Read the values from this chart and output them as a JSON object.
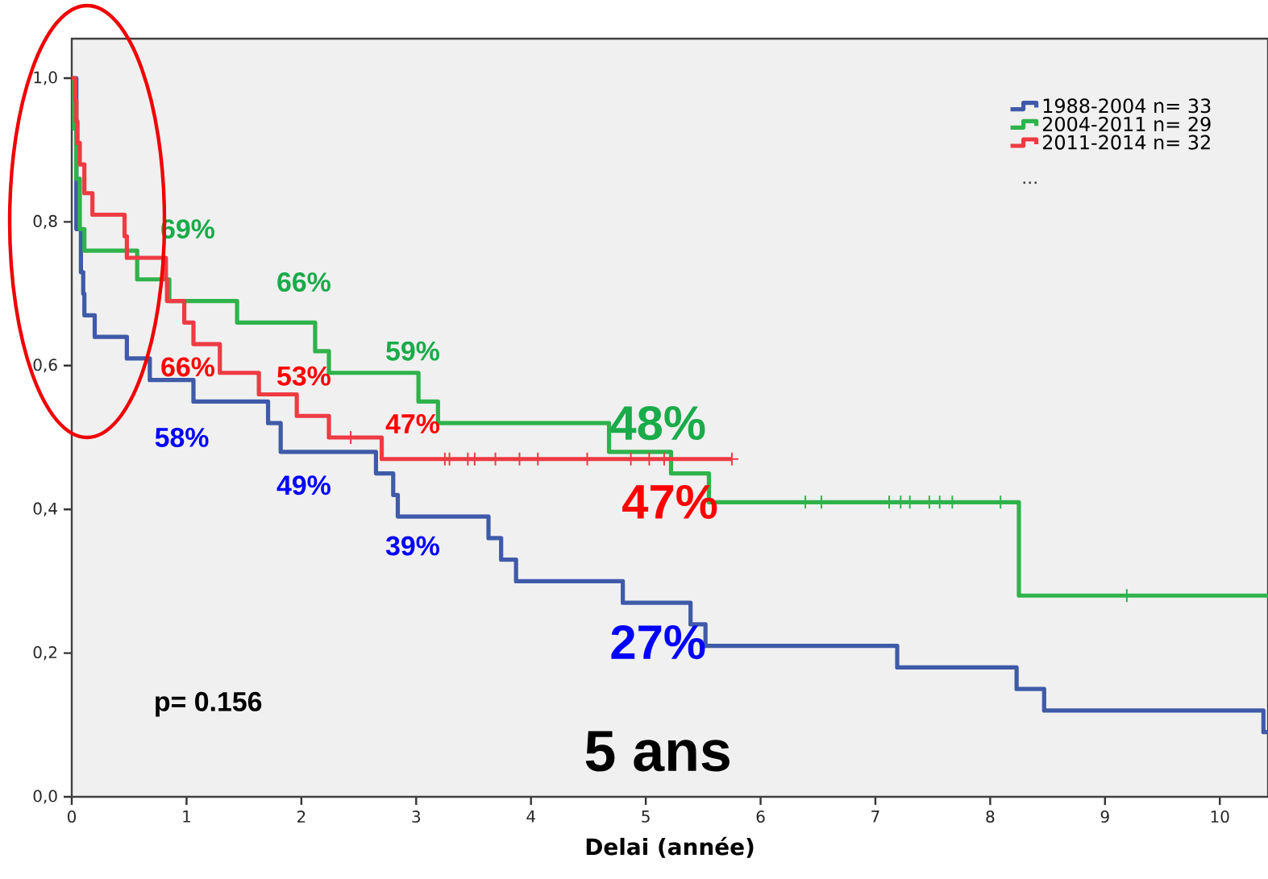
{
  "chart_data": {
    "type": "step",
    "xlabel": "Delai (année)",
    "xlim": [
      0,
      10.42
    ],
    "ylim": [
      0,
      1.055
    ],
    "xticks": [
      0,
      1,
      2,
      3,
      4,
      5,
      6,
      7,
      8,
      9,
      10
    ],
    "yticks": [
      {
        "value": 0,
        "label": "0,0"
      },
      {
        "value": 0.2,
        "label": "0,2"
      },
      {
        "value": 0.4,
        "label": "0,4"
      },
      {
        "value": 0.6,
        "label": "0,6"
      },
      {
        "value": 0.8,
        "label": "0,8"
      },
      {
        "value": 1.0,
        "label": "1,0"
      }
    ],
    "legend": "top right",
    "series": [
      {
        "name": "1988-2004 n= 33",
        "color": "#3f5aa8",
        "x": [
          0,
          0.04,
          0.08,
          0.1,
          0.11,
          0.2,
          0.48,
          0.68,
          1.06,
          1.71,
          1.82,
          2.65,
          2.8,
          2.84,
          3.63,
          3.74,
          3.87,
          4.8,
          5.39,
          5.52,
          7.19,
          8.23,
          8.47,
          10.38,
          10.42
        ],
        "values": [
          1,
          0.79,
          0.73,
          0.7,
          0.67,
          0.64,
          0.61,
          0.58,
          0.55,
          0.52,
          0.48,
          0.45,
          0.42,
          0.39,
          0.36,
          0.33,
          0.3,
          0.27,
          0.24,
          0.21,
          0.18,
          0.15,
          0.12,
          0.09,
          0.09
        ]
      },
      {
        "name": "2004-2011 n= 29",
        "color": "#2eb34b",
        "x": [
          0,
          0.02,
          0.04,
          0.07,
          0.11,
          0.57,
          0.85,
          1.44,
          2.12,
          2.24,
          3.02,
          3.19,
          4.68,
          5.22,
          5.55,
          8.25,
          10.42
        ],
        "values": [
          1,
          0.93,
          0.86,
          0.79,
          0.76,
          0.72,
          0.69,
          0.66,
          0.62,
          0.59,
          0.55,
          0.52,
          0.48,
          0.45,
          0.41,
          0.28,
          0.28
        ]
      },
      {
        "name": "2011-2014 n= 32",
        "color": "#ee3b43",
        "x": [
          0,
          0.03,
          0.04,
          0.05,
          0.07,
          0.11,
          0.18,
          0.46,
          0.48,
          0.82,
          0.83,
          0.98,
          1.06,
          1.29,
          1.63,
          1.96,
          2.24,
          2.7,
          5.75
        ],
        "values": [
          1,
          0.97,
          0.94,
          0.91,
          0.88,
          0.84,
          0.81,
          0.78,
          0.75,
          0.72,
          0.69,
          0.66,
          0.63,
          0.59,
          0.56,
          0.53,
          0.5,
          0.47,
          0.47
        ]
      },
      {
        "type": "scatter",
        "marker": "cross",
        "color": "#2eb34b",
        "x": [
          6.39,
          6.53,
          7.12,
          7.22,
          7.3,
          7.47,
          7.56,
          7.67,
          8.09,
          9.19
        ],
        "values": [
          0.41,
          0.41,
          0.41,
          0.41,
          0.41,
          0.41,
          0.41,
          0.41,
          0.41,
          0.28
        ]
      },
      {
        "type": "scatter",
        "marker": "cross",
        "color": "#ee3b43",
        "x": [
          2.43,
          3.25,
          3.29,
          3.45,
          3.51,
          3.69,
          3.9,
          4.06,
          4.49,
          4.87,
          5.03,
          5.16,
          5.75
        ],
        "values": [
          0.5,
          0.47,
          0.47,
          0.47,
          0.47,
          0.47,
          0.47,
          0.47,
          0.47,
          0.47,
          0.47,
          0.47,
          0.47
        ]
      }
    ],
    "annotations": [
      "69%",
      "66%",
      "59%",
      "48%",
      "66%",
      "53%",
      "47%",
      "47%",
      "58%",
      "49%",
      "39%",
      "27%",
      "p= 0.156",
      "5 ans",
      "..."
    ]
  }
}
